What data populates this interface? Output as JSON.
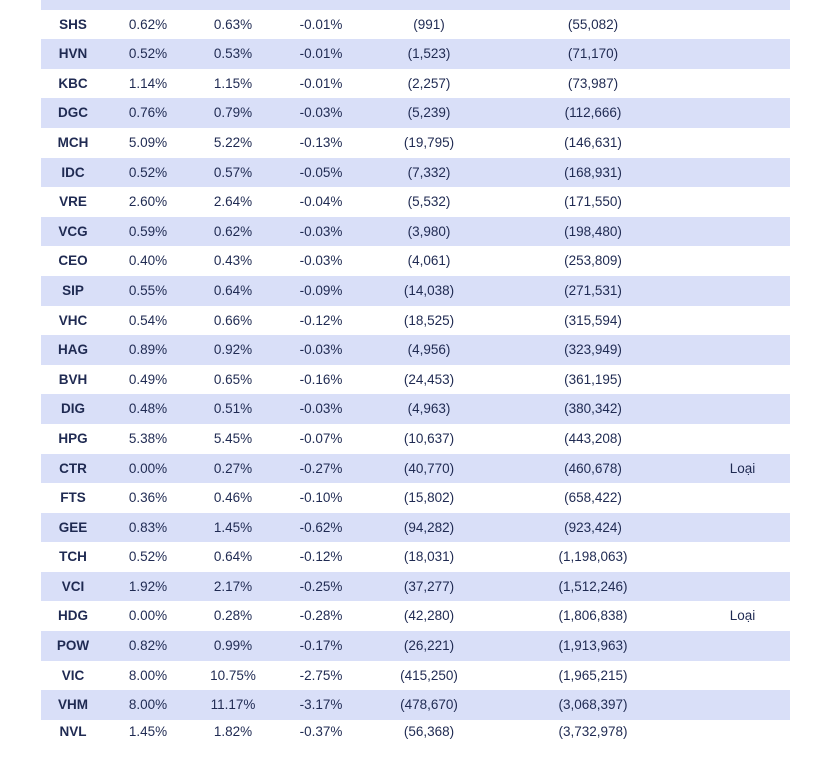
{
  "table": {
    "rows": [
      {
        "ticker": "",
        "c1": "",
        "c2": "",
        "c3": "",
        "c4": "",
        "c5": "",
        "note": ""
      },
      {
        "ticker": "SHS",
        "c1": "0.62%",
        "c2": "0.63%",
        "c3": "-0.01%",
        "c4": "(991)",
        "c5": "(55,082)",
        "note": ""
      },
      {
        "ticker": "HVN",
        "c1": "0.52%",
        "c2": "0.53%",
        "c3": "-0.01%",
        "c4": "(1,523)",
        "c5": "(71,170)",
        "note": ""
      },
      {
        "ticker": "KBC",
        "c1": "1.14%",
        "c2": "1.15%",
        "c3": "-0.01%",
        "c4": "(2,257)",
        "c5": "(73,987)",
        "note": ""
      },
      {
        "ticker": "DGC",
        "c1": "0.76%",
        "c2": "0.79%",
        "c3": "-0.03%",
        "c4": "(5,239)",
        "c5": "(112,666)",
        "note": ""
      },
      {
        "ticker": "MCH",
        "c1": "5.09%",
        "c2": "5.22%",
        "c3": "-0.13%",
        "c4": "(19,795)",
        "c5": "(146,631)",
        "note": ""
      },
      {
        "ticker": "IDC",
        "c1": "0.52%",
        "c2": "0.57%",
        "c3": "-0.05%",
        "c4": "(7,332)",
        "c5": "(168,931)",
        "note": ""
      },
      {
        "ticker": "VRE",
        "c1": "2.60%",
        "c2": "2.64%",
        "c3": "-0.04%",
        "c4": "(5,532)",
        "c5": "(171,550)",
        "note": ""
      },
      {
        "ticker": "VCG",
        "c1": "0.59%",
        "c2": "0.62%",
        "c3": "-0.03%",
        "c4": "(3,980)",
        "c5": "(198,480)",
        "note": ""
      },
      {
        "ticker": "CEO",
        "c1": "0.40%",
        "c2": "0.43%",
        "c3": "-0.03%",
        "c4": "(4,061)",
        "c5": "(253,809)",
        "note": ""
      },
      {
        "ticker": "SIP",
        "c1": "0.55%",
        "c2": "0.64%",
        "c3": "-0.09%",
        "c4": "(14,038)",
        "c5": "(271,531)",
        "note": ""
      },
      {
        "ticker": "VHC",
        "c1": "0.54%",
        "c2": "0.66%",
        "c3": "-0.12%",
        "c4": "(18,525)",
        "c5": "(315,594)",
        "note": ""
      },
      {
        "ticker": "HAG",
        "c1": "0.89%",
        "c2": "0.92%",
        "c3": "-0.03%",
        "c4": "(4,956)",
        "c5": "(323,949)",
        "note": ""
      },
      {
        "ticker": "BVH",
        "c1": "0.49%",
        "c2": "0.65%",
        "c3": "-0.16%",
        "c4": "(24,453)",
        "c5": "(361,195)",
        "note": ""
      },
      {
        "ticker": "DIG",
        "c1": "0.48%",
        "c2": "0.51%",
        "c3": "-0.03%",
        "c4": "(4,963)",
        "c5": "(380,342)",
        "note": ""
      },
      {
        "ticker": "HPG",
        "c1": "5.38%",
        "c2": "5.45%",
        "c3": "-0.07%",
        "c4": "(10,637)",
        "c5": "(443,208)",
        "note": ""
      },
      {
        "ticker": "CTR",
        "c1": "0.00%",
        "c2": "0.27%",
        "c3": "-0.27%",
        "c4": "(40,770)",
        "c5": "(460,678)",
        "note": "Loại"
      },
      {
        "ticker": "FTS",
        "c1": "0.36%",
        "c2": "0.46%",
        "c3": "-0.10%",
        "c4": "(15,802)",
        "c5": "(658,422)",
        "note": ""
      },
      {
        "ticker": "GEE",
        "c1": "0.83%",
        "c2": "1.45%",
        "c3": "-0.62%",
        "c4": "(94,282)",
        "c5": "(923,424)",
        "note": ""
      },
      {
        "ticker": "TCH",
        "c1": "0.52%",
        "c2": "0.64%",
        "c3": "-0.12%",
        "c4": "(18,031)",
        "c5": "(1,198,063)",
        "note": ""
      },
      {
        "ticker": "VCI",
        "c1": "1.92%",
        "c2": "2.17%",
        "c3": "-0.25%",
        "c4": "(37,277)",
        "c5": "(1,512,246)",
        "note": ""
      },
      {
        "ticker": "HDG",
        "c1": "0.00%",
        "c2": "0.28%",
        "c3": "-0.28%",
        "c4": "(42,280)",
        "c5": "(1,806,838)",
        "note": "Loại"
      },
      {
        "ticker": "POW",
        "c1": "0.82%",
        "c2": "0.99%",
        "c3": "-0.17%",
        "c4": "(26,221)",
        "c5": "(1,913,963)",
        "note": ""
      },
      {
        "ticker": "VIC",
        "c1": "8.00%",
        "c2": "10.75%",
        "c3": "-2.75%",
        "c4": "(415,250)",
        "c5": "(1,965,215)",
        "note": ""
      },
      {
        "ticker": "VHM",
        "c1": "8.00%",
        "c2": "11.17%",
        "c3": "-3.17%",
        "c4": "(478,670)",
        "c5": "(3,068,397)",
        "note": ""
      },
      {
        "ticker": "NVL",
        "c1": "1.45%",
        "c2": "1.82%",
        "c3": "-0.37%",
        "c4": "(56,368)",
        "c5": "(3,732,978)",
        "note": ""
      }
    ]
  }
}
